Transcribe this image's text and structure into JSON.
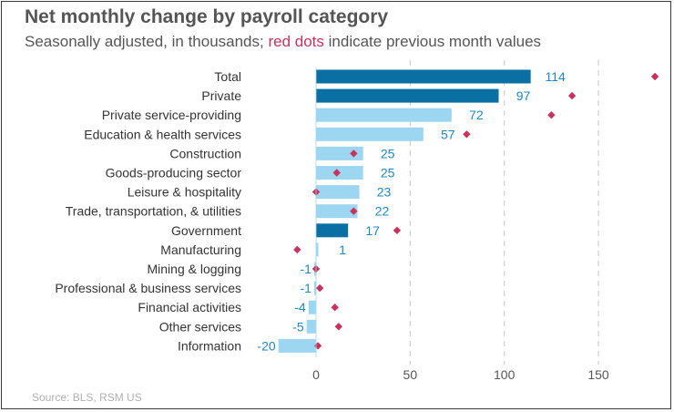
{
  "header": {
    "title": "Net monthly change by payroll category",
    "subtitle_prefix": "Seasonally adjusted, in thousands; ",
    "subtitle_red": "red dots",
    "subtitle_suffix": " indicate previous month values"
  },
  "footer": {
    "source": "Source: BLS, RSM US"
  },
  "colors": {
    "dark_bar": "#0a6fa3",
    "light_bar": "#9dd6f1",
    "dot": "#c8325c",
    "value_text": "#1e88c0",
    "grid": "#cfcfcf"
  },
  "chart_data": {
    "type": "bar",
    "orientation": "horizontal",
    "title": "Net monthly change by payroll category",
    "subtitle": "Seasonally adjusted, in thousands; red dots indicate previous month values",
    "xlim": [
      -22,
      180
    ],
    "xticks": [
      0,
      50,
      100,
      150
    ],
    "grid": true,
    "categories": [
      "Total",
      "Private",
      "Private service-providing",
      "Education & health services",
      "Construction",
      "Goods-producing sector",
      "Leisure & hospitality",
      "Trade, transportation, & utilities",
      "Government",
      "Manufacturing",
      "Mining & logging",
      "Professional & business services",
      "Financial activities",
      "Other services",
      "Information"
    ],
    "series": [
      {
        "name": "Current month",
        "values": [
          114,
          97,
          72,
          57,
          25,
          25,
          23,
          22,
          17,
          1,
          -1,
          -1,
          -4,
          -5,
          -20
        ],
        "emphasis": [
          "dark",
          "dark",
          "light",
          "light",
          "light",
          "light",
          "light",
          "light",
          "dark",
          "light",
          "light",
          "light",
          "light",
          "light",
          "light"
        ]
      },
      {
        "name": "Previous month",
        "marker": "diamond",
        "values": [
          180,
          136,
          125,
          80,
          20,
          11,
          0,
          20,
          43,
          -10,
          0,
          2,
          10,
          12,
          1
        ]
      }
    ]
  }
}
